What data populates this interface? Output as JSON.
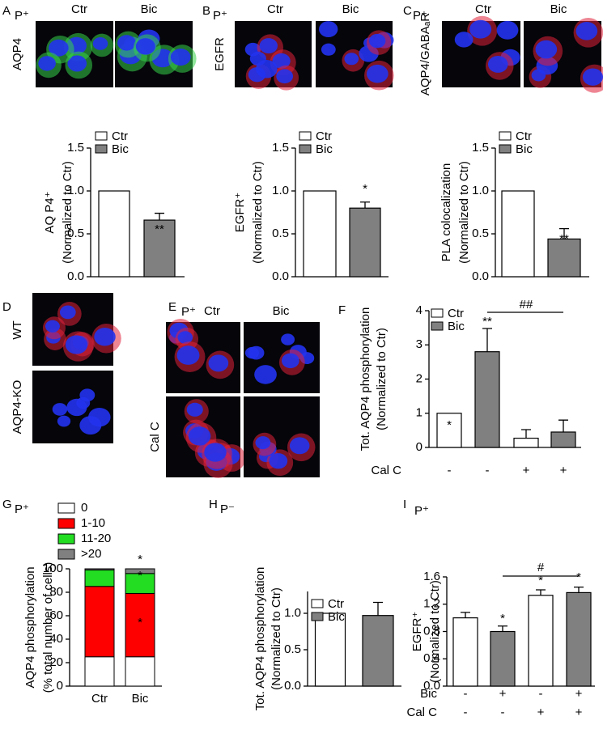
{
  "panels": [
    {
      "letter": "A",
      "condition": "P⁺",
      "columns": [
        "Ctr",
        "Bic"
      ],
      "rows": [
        "AQP4"
      ]
    },
    {
      "letter": "B",
      "condition": "P⁺",
      "columns": [
        "Ctr",
        "Bic"
      ],
      "rows": [
        "EGFR"
      ]
    },
    {
      "letter": "C",
      "condition": "P⁺",
      "columns": [
        "Ctr",
        "Bic"
      ],
      "rows": [
        "AQP4/GABAₐR"
      ]
    },
    {
      "letter": "D",
      "rows": [
        "WT",
        "AQP4-KO"
      ]
    },
    {
      "letter": "E",
      "condition": "P⁺",
      "columns": [
        "Ctr",
        "Bic"
      ],
      "rows": [
        "Cal C"
      ]
    }
  ],
  "chart_data": [
    {
      "type": "bar",
      "ylabel": [
        "AQ P4⁺",
        "(Normalized to Ctr)"
      ],
      "ylim": [
        0,
        1.5
      ],
      "yticks": [
        {
          "value": 0,
          "label": "0.0"
        },
        0.5,
        {
          "value": 1,
          "label": "1.0"
        },
        1.5
      ],
      "legend": "upper left",
      "series": [
        {
          "name": "Ctr",
          "color": "#ffffff",
          "values": [
            1.0,
            null
          ],
          "errors": [
            null,
            null
          ]
        },
        {
          "name": "Bic",
          "color": "#808080",
          "values": [
            null,
            0.66
          ],
          "errors": [
            null,
            0.08
          ]
        }
      ],
      "annotations": [
        "**"
      ]
    },
    {
      "type": "bar",
      "ylabel": [
        "EGFR⁺",
        "(Normalized to Ctr)"
      ],
      "ylim": [
        0,
        1.5
      ],
      "yticks": [
        {
          "value": 0,
          "label": "0.0"
        },
        0.5,
        {
          "value": 1,
          "label": "1.0"
        },
        1.5
      ],
      "legend": "upper left",
      "series": [
        {
          "name": "Ctr",
          "color": "#ffffff",
          "values": [
            1.0,
            null
          ],
          "errors": [
            null,
            null
          ]
        },
        {
          "name": "Bic",
          "color": "#808080",
          "values": [
            null,
            0.8
          ],
          "errors": [
            null,
            0.07
          ]
        }
      ],
      "annotations": [
        "*"
      ]
    },
    {
      "type": "bar",
      "ylabel": [
        "PLA colocalization",
        "(Normalized to Ctr)"
      ],
      "ylim": [
        0,
        1.5
      ],
      "yticks": [
        {
          "value": 0,
          "label": "0.0"
        },
        0.5,
        {
          "value": 1,
          "label": "1.0"
        },
        1.5
      ],
      "legend": "upper left",
      "series": [
        {
          "name": "Ctr",
          "color": "#ffffff",
          "values": [
            1.0,
            null
          ],
          "errors": [
            null,
            null
          ]
        },
        {
          "name": "Bic",
          "color": "#808080",
          "values": [
            null,
            0.44
          ],
          "errors": [
            null,
            0.12
          ]
        }
      ],
      "annotations": [
        "**"
      ]
    },
    {
      "type": "bar",
      "letter": "F",
      "ylabel": [
        "Tot. AQP4 phosphorylation",
        "(Normalized to Ctr)"
      ],
      "ylim": [
        0,
        4
      ],
      "yticks": [
        0,
        1,
        2,
        3,
        4
      ],
      "legend": "upper left",
      "series": [
        {
          "name": "Ctr",
          "color": "#ffffff",
          "values": [
            1.0,
            null,
            0.27,
            null
          ],
          "errors": [
            null,
            null,
            0.25,
            null
          ]
        },
        {
          "name": "Bic",
          "color": "#808080",
          "values": [
            null,
            2.8,
            null,
            0.45
          ],
          "errors": [
            null,
            0.68,
            null,
            0.35
          ]
        }
      ],
      "annotations": [
        "**",
        "*",
        "##"
      ],
      "treatments": [
        {
          "name": "Cal C",
          "values": [
            "-",
            "-",
            "+",
            "+"
          ]
        }
      ]
    },
    {
      "type": "stacked_bar",
      "letter": "G",
      "condition": "P⁺",
      "ylabel": [
        "AQP4 phosphorylation",
        "(% total number of cells)"
      ],
      "categories": [
        "Ctr",
        "Bic"
      ],
      "ylim": [
        0,
        100
      ],
      "yticks": [
        0,
        20,
        40,
        60,
        80,
        100
      ],
      "legend": "upper left",
      "series": [
        {
          "name": "0",
          "color": "#ffffff",
          "values": [
            25,
            25
          ]
        },
        {
          "name": "1-10",
          "color": "#ff0000",
          "values": [
            60,
            54
          ]
        },
        {
          "name": "11-20",
          "color": "#22dd22",
          "values": [
            14,
            17
          ]
        },
        {
          "name": ">20",
          "color": "#808080",
          "values": [
            1,
            4
          ]
        }
      ],
      "annotations": [
        "*",
        "*",
        "*"
      ]
    },
    {
      "type": "bar",
      "letter": "H",
      "condition": "P⁻",
      "ylabel": [
        "Tot. AQP4 phosphorylation",
        "(Normalized to Ctr)"
      ],
      "ylim": [
        0,
        1.3
      ],
      "yticks": [
        {
          "value": 0,
          "label": "0.0"
        },
        0.5,
        {
          "value": 1,
          "label": "1.0"
        }
      ],
      "legend": "upper left",
      "series": [
        {
          "name": "Ctr",
          "color": "#ffffff",
          "values": [
            1.0,
            null
          ],
          "errors": [
            null,
            null
          ]
        },
        {
          "name": "Bic",
          "color": "#808080",
          "values": [
            null,
            0.97
          ],
          "errors": [
            null,
            0.18
          ]
        }
      ]
    },
    {
      "type": "bar",
      "letter": "I",
      "condition": "P⁺",
      "ylabel": [
        "EGFR⁺",
        "(Normalized to Ctr)"
      ],
      "ylim": [
        0,
        1.6
      ],
      "yticks": [
        {
          "value": 0,
          "label": "0.0"
        },
        0.4,
        0.8,
        1.2,
        1.6
      ],
      "series": [
        {
          "name": "Ctr",
          "color": "#ffffff",
          "values": [
            1.0,
            null,
            1.33,
            null
          ],
          "errors": [
            0.08,
            null,
            0.08,
            null
          ]
        },
        {
          "name": "Bic",
          "color": "#808080",
          "values": [
            null,
            0.8,
            null,
            1.37
          ],
          "errors": [
            null,
            0.08,
            null,
            0.08
          ]
        }
      ],
      "annotations": [
        "*",
        "*",
        "*",
        "#"
      ],
      "treatments": [
        {
          "name": "Bic",
          "values": [
            "-",
            "+",
            "-",
            "+"
          ]
        },
        {
          "name": "Cal C",
          "values": [
            "-",
            "-",
            "+",
            "+"
          ]
        }
      ]
    }
  ]
}
